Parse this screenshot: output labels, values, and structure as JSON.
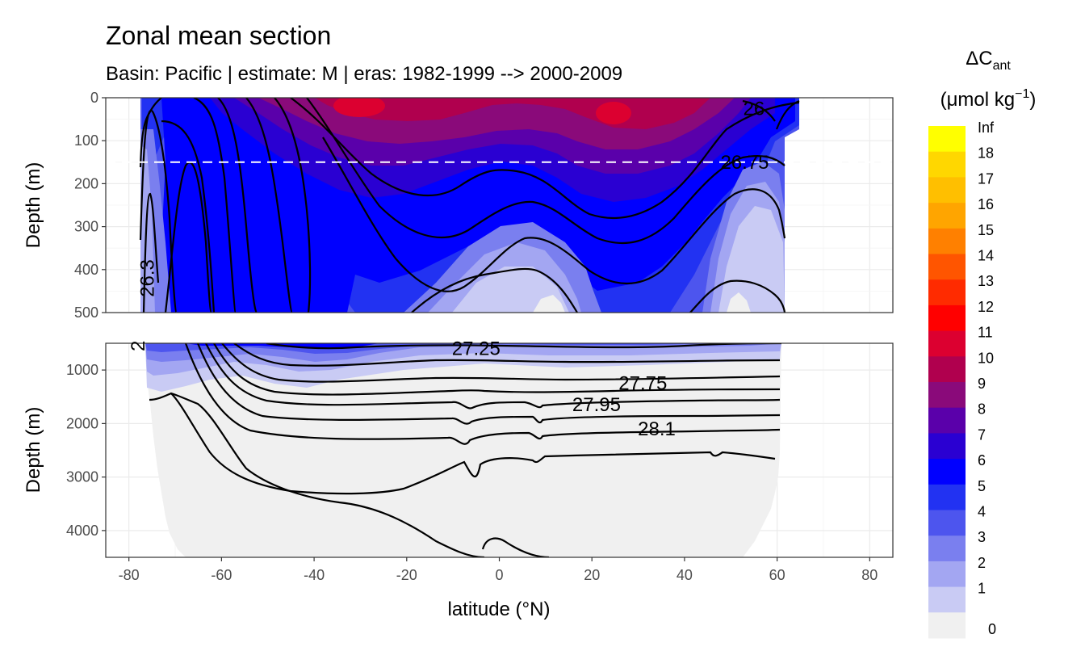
{
  "chart_data": {
    "type": "contour",
    "title": "Zonal mean section",
    "subtitle": "Basin: Pacific | estimate: M  | eras: 1982-1999 --> 2000-2009",
    "xlabel": "latitude (°N)",
    "ylabel": "Depth (m)",
    "xticks": [
      -80,
      -60,
      -40,
      -20,
      0,
      20,
      40,
      60,
      80
    ],
    "xlim": [
      -85,
      85
    ],
    "panels": [
      {
        "name": "upper",
        "ylim": [
          0,
          500
        ],
        "yticks": [
          0,
          100,
          200,
          300,
          400,
          500
        ],
        "reference_line_depth": 150
      },
      {
        "name": "lower",
        "ylim": [
          500,
          4500
        ],
        "yticks": [
          1000,
          2000,
          3000,
          4000
        ]
      }
    ],
    "legend": {
      "title_line1": "ΔC",
      "title_sub": "ant",
      "title_line2": "(μmol kg",
      "title_sup": "−1",
      "title_close": ")",
      "position": "right",
      "bins": [
        {
          "label": "Inf",
          "color": "#FFFF00"
        },
        {
          "label": "18",
          "color": "#FFD700"
        },
        {
          "label": "17",
          "color": "#FFBF00"
        },
        {
          "label": "16",
          "color": "#FFA500"
        },
        {
          "label": "15",
          "color": "#FF8000"
        },
        {
          "label": "14",
          "color": "#FF5500"
        },
        {
          "label": "13",
          "color": "#FF2B00"
        },
        {
          "label": "12",
          "color": "#FF0000"
        },
        {
          "label": "11",
          "color": "#DC0030"
        },
        {
          "label": "10",
          "color": "#B0004E"
        },
        {
          "label": "9",
          "color": "#8A0A7A"
        },
        {
          "label": "8",
          "color": "#5A00AA"
        },
        {
          "label": "7",
          "color": "#2A00D2"
        },
        {
          "label": "6",
          "color": "#0000FF"
        },
        {
          "label": "5",
          "color": "#2232F2"
        },
        {
          "label": "4",
          "color": "#4D55EE"
        },
        {
          "label": "3",
          "color": "#7A7FEF"
        },
        {
          "label": "2",
          "color": "#A3A6F2"
        },
        {
          "label": "1",
          "color": "#C9CBF4"
        },
        {
          "label": "0",
          "color": "#F0F0F0"
        }
      ]
    },
    "contour_labels": [
      {
        "text": "26",
        "lat": 55,
        "depth": 25
      },
      {
        "text": "26.75",
        "lat": 53,
        "depth": 150
      },
      {
        "text": "26.3",
        "lat": -76,
        "depth": 420
      },
      {
        "text": "2",
        "lat": -78,
        "depth": 550
      },
      {
        "text": "27.25",
        "lat": -5,
        "depth": 600
      },
      {
        "text": "27.75",
        "lat": 31,
        "depth": 1250
      },
      {
        "text": "27.95",
        "lat": 21,
        "depth": 1650
      },
      {
        "text": "28.1",
        "lat": 34,
        "depth": 2100
      }
    ]
  }
}
